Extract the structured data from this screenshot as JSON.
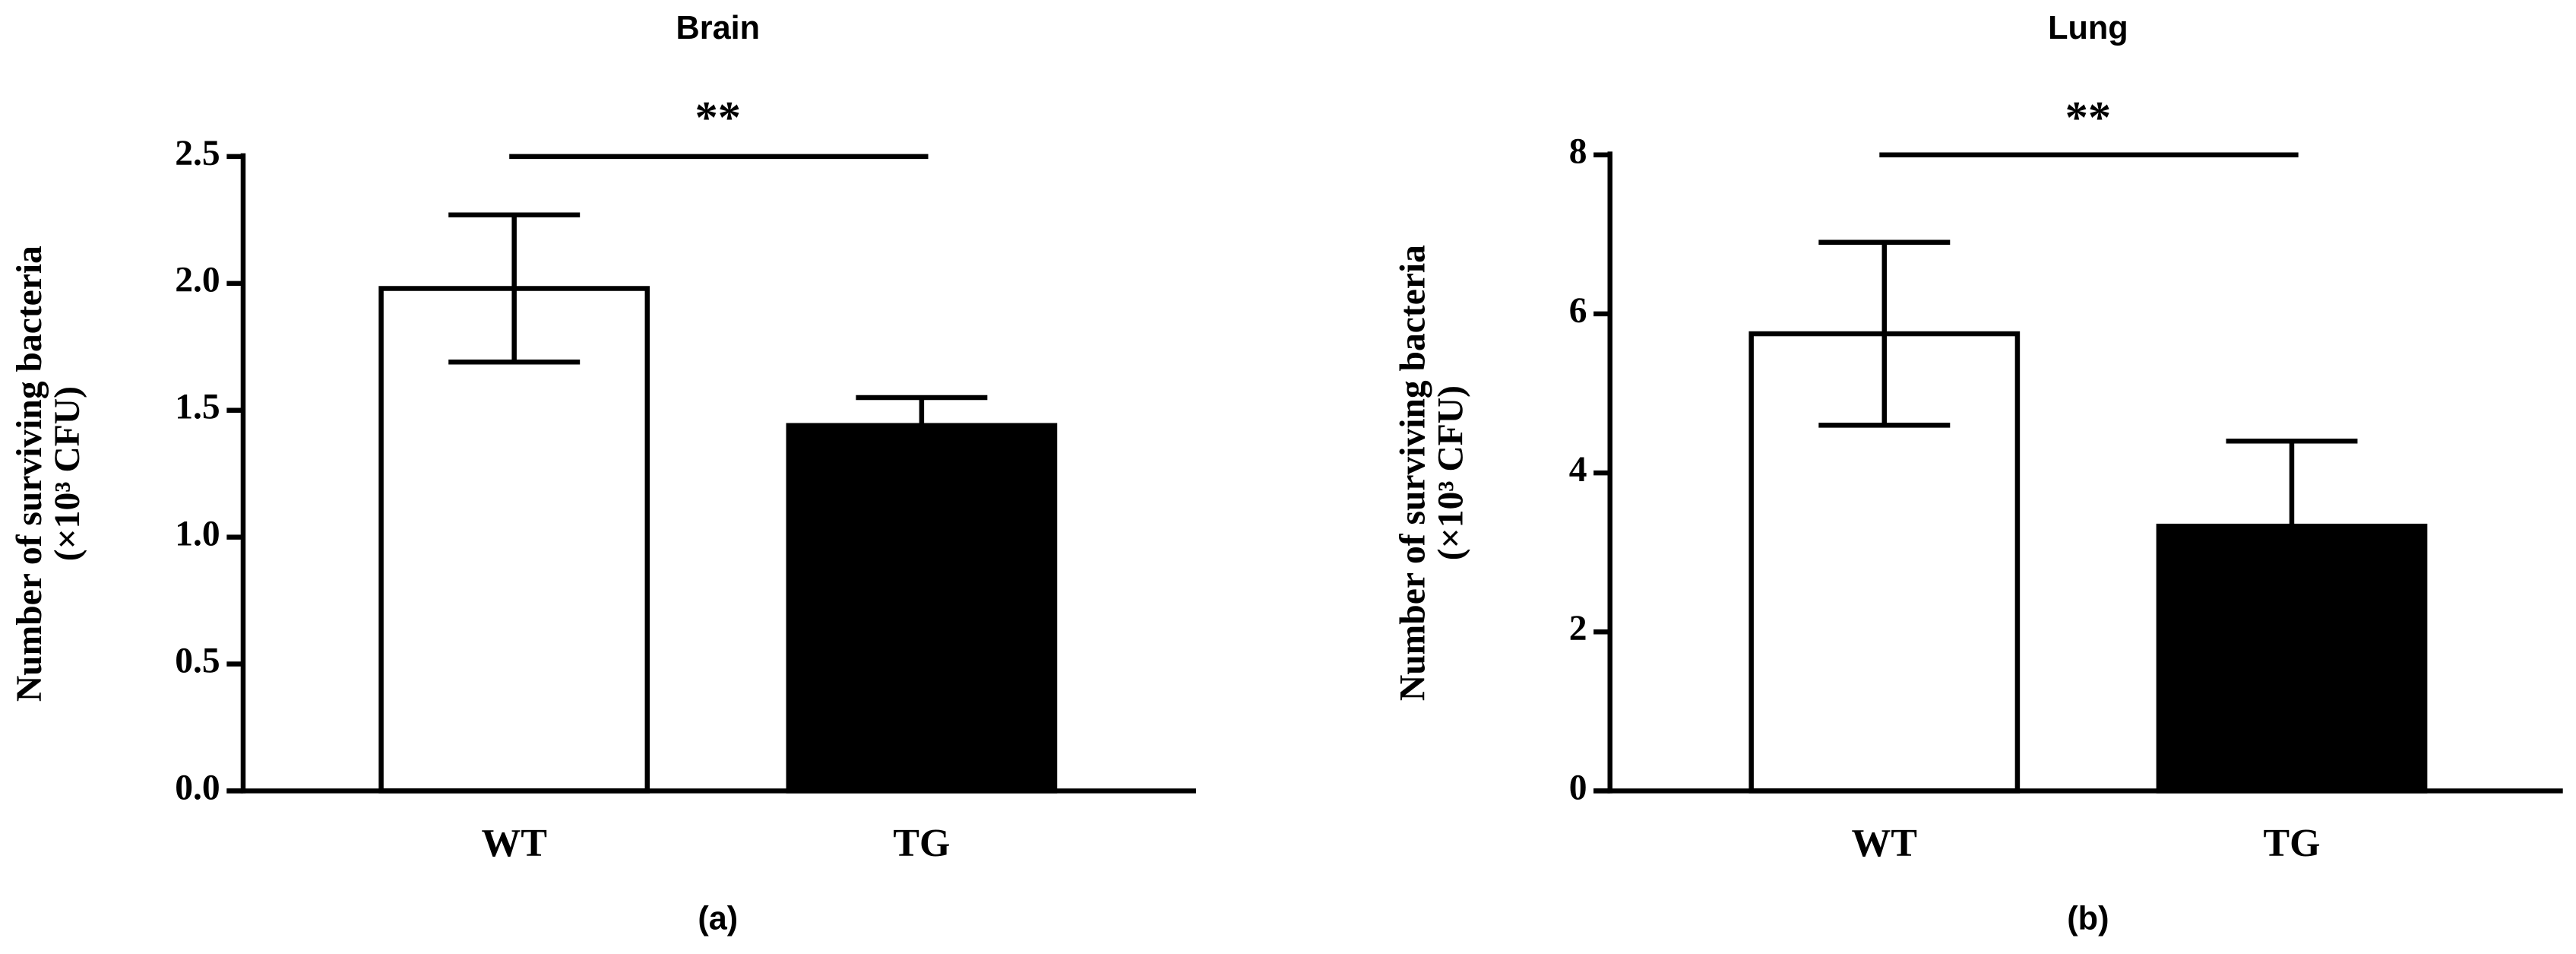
{
  "chart_data": [
    {
      "type": "bar",
      "title": "Brain",
      "panel": "(a)",
      "ylabel": "Number of surviving bacteria",
      "ylabel_unit": "(×10³ CFU)",
      "categories": [
        "WT",
        "TG"
      ],
      "values": [
        1.98,
        1.44
      ],
      "errors": [
        0.29,
        0.11
      ],
      "colors": [
        "#ffffff",
        "#000000"
      ],
      "ylim": [
        0,
        2.5
      ],
      "yticks": [
        {
          "value": 0,
          "label": "0.0"
        },
        0.5,
        {
          "value": 1,
          "label": "1.0"
        },
        1.5,
        {
          "value": 2,
          "label": "2.0"
        },
        2.5
      ],
      "significance": "**"
    },
    {
      "type": "bar",
      "title": "Lung",
      "panel": "(b)",
      "ylabel": "Number of surviving bacteria",
      "ylabel_unit": "(×10³ CFU)",
      "categories": [
        "WT",
        "TG"
      ],
      "values": [
        5.75,
        3.33
      ],
      "errors": [
        1.15,
        1.07
      ],
      "colors": [
        "#ffffff",
        "#000000"
      ],
      "ylim": [
        0,
        8
      ],
      "yticks": [
        0,
        2,
        4,
        6,
        8
      ],
      "significance": "**"
    }
  ]
}
